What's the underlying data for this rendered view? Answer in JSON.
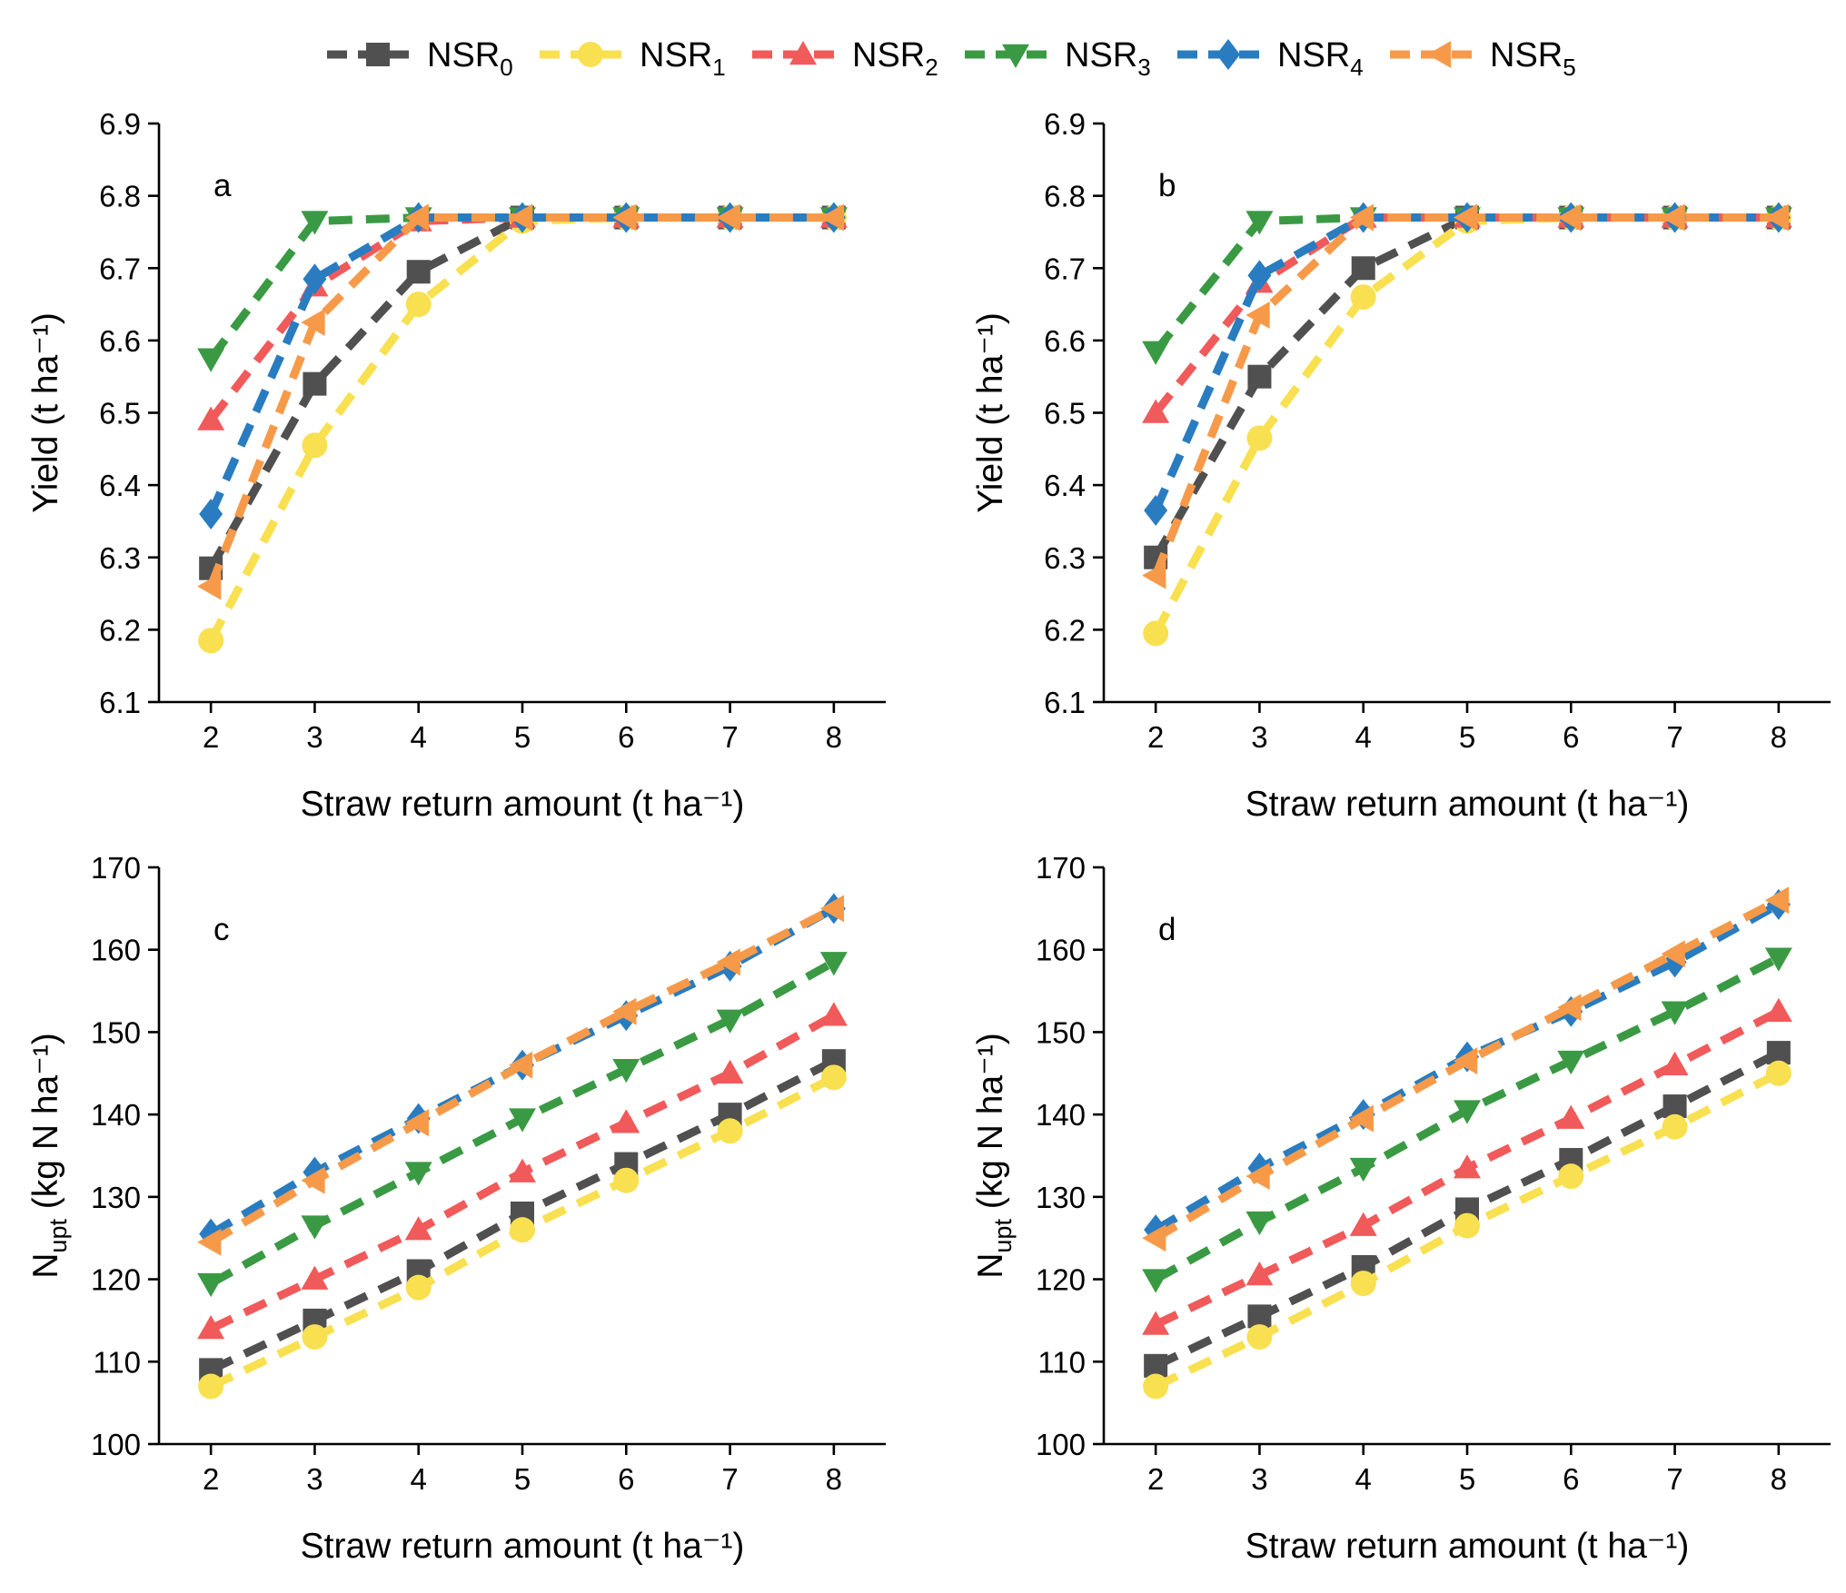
{
  "legend": {
    "entries": [
      {
        "base": "NSR",
        "sub": "0"
      },
      {
        "base": "NSR",
        "sub": "1"
      },
      {
        "base": "NSR",
        "sub": "2"
      },
      {
        "base": "NSR",
        "sub": "3"
      },
      {
        "base": "NSR",
        "sub": "4"
      },
      {
        "base": "NSR",
        "sub": "5"
      }
    ]
  },
  "colors": {
    "NSR0": "#505050",
    "NSR1": "#f8e050",
    "NSR2": "#f05a5a",
    "NSR3": "#3a9a44",
    "NSR4": "#2a7cc0",
    "NSR5": "#f69a4a"
  },
  "markers": {
    "NSR0": "square",
    "NSR1": "circle",
    "NSR2": "triangle-up",
    "NSR3": "triangle-down",
    "NSR4": "diamond",
    "NSR5": "triangle-left"
  },
  "chart_data": [
    {
      "panel": "a",
      "type": "line",
      "xlabel": "Straw return amount (t ha⁻¹)",
      "ylabel": "Yield (t ha⁻¹)",
      "x": [
        2,
        3,
        4,
        5,
        6,
        7,
        8
      ],
      "xlim": [
        1.5,
        8.5
      ],
      "ylim": [
        6.1,
        6.9
      ],
      "yticks": [
        6.1,
        6.2,
        6.3,
        6.4,
        6.5,
        6.6,
        6.7,
        6.8,
        6.9
      ],
      "ytick_labels": [
        "6.1",
        "6.2",
        "6.3",
        "6.4",
        "6.5",
        "6.6",
        "6.7",
        "6.8",
        "6.9"
      ],
      "series": [
        {
          "name": "NSR0",
          "values": [
            6.285,
            6.54,
            6.695,
            6.77,
            6.77,
            6.77,
            6.77
          ]
        },
        {
          "name": "NSR1",
          "values": [
            6.185,
            6.455,
            6.65,
            6.765,
            6.77,
            6.77,
            6.77
          ]
        },
        {
          "name": "NSR2",
          "values": [
            6.49,
            6.675,
            6.765,
            6.77,
            6.77,
            6.77,
            6.77
          ]
        },
        {
          "name": "NSR3",
          "values": [
            6.575,
            6.765,
            6.77,
            6.77,
            6.77,
            6.77,
            6.77
          ]
        },
        {
          "name": "NSR4",
          "values": [
            6.36,
            6.685,
            6.77,
            6.77,
            6.77,
            6.77,
            6.77
          ]
        },
        {
          "name": "NSR5",
          "values": [
            6.26,
            6.625,
            6.77,
            6.77,
            6.77,
            6.77,
            6.77
          ]
        }
      ]
    },
    {
      "panel": "b",
      "type": "line",
      "xlabel": "Straw return amount (t ha⁻¹)",
      "ylabel": "Yield (t ha⁻¹)",
      "x": [
        2,
        3,
        4,
        5,
        6,
        7,
        8
      ],
      "xlim": [
        1.5,
        8.5
      ],
      "ylim": [
        6.1,
        6.9
      ],
      "yticks": [
        6.1,
        6.2,
        6.3,
        6.4,
        6.5,
        6.6,
        6.7,
        6.8,
        6.9
      ],
      "ytick_labels": [
        "6.1",
        "6.2",
        "6.3",
        "6.4",
        "6.5",
        "6.6",
        "6.7",
        "6.8",
        "6.9"
      ],
      "series": [
        {
          "name": "NSR0",
          "values": [
            6.3,
            6.55,
            6.7,
            6.77,
            6.77,
            6.77,
            6.77
          ]
        },
        {
          "name": "NSR1",
          "values": [
            6.195,
            6.465,
            6.66,
            6.765,
            6.77,
            6.77,
            6.77
          ]
        },
        {
          "name": "NSR2",
          "values": [
            6.5,
            6.68,
            6.77,
            6.77,
            6.77,
            6.77,
            6.77
          ]
        },
        {
          "name": "NSR3",
          "values": [
            6.585,
            6.765,
            6.77,
            6.77,
            6.77,
            6.77,
            6.77
          ]
        },
        {
          "name": "NSR4",
          "values": [
            6.365,
            6.69,
            6.77,
            6.77,
            6.77,
            6.77,
            6.77
          ]
        },
        {
          "name": "NSR5",
          "values": [
            6.275,
            6.635,
            6.77,
            6.77,
            6.77,
            6.77,
            6.77
          ]
        }
      ]
    },
    {
      "panel": "c",
      "type": "line",
      "xlabel": "Straw return amount (t ha⁻¹)",
      "ylabel": "N",
      "ylabel_sub": "upt",
      "ylabel_rest": "(kg N ha⁻¹)",
      "x": [
        2,
        3,
        4,
        5,
        6,
        7,
        8
      ],
      "xlim": [
        1.5,
        8.5
      ],
      "ylim": [
        100,
        170
      ],
      "yticks": [
        100,
        110,
        120,
        130,
        140,
        150,
        160,
        170
      ],
      "ytick_labels": [
        "100",
        "110",
        "120",
        "130",
        "140",
        "150",
        "160",
        "170"
      ],
      "series": [
        {
          "name": "NSR0",
          "values": [
            109,
            115,
            121,
            128,
            134,
            140,
            146.5
          ]
        },
        {
          "name": "NSR1",
          "values": [
            107,
            113,
            119,
            126,
            132,
            138,
            144.5
          ]
        },
        {
          "name": "NSR2",
          "values": [
            114,
            120,
            126,
            133,
            139,
            145,
            152
          ]
        },
        {
          "name": "NSR3",
          "values": [
            119.5,
            126.5,
            133,
            139.5,
            145.5,
            151.5,
            158.5
          ]
        },
        {
          "name": "NSR4",
          "values": [
            125.5,
            133,
            139.5,
            146,
            152,
            158,
            165
          ]
        },
        {
          "name": "NSR5",
          "values": [
            124.5,
            132,
            139,
            146,
            152.5,
            158.5,
            165
          ]
        }
      ]
    },
    {
      "panel": "d",
      "type": "line",
      "xlabel": "Straw return amount (t ha⁻¹)",
      "ylabel": "N",
      "ylabel_sub": "upt",
      "ylabel_rest": "(kg N ha⁻¹)",
      "x": [
        2,
        3,
        4,
        5,
        6,
        7,
        8
      ],
      "xlim": [
        1.5,
        8.5
      ],
      "ylim": [
        100,
        170
      ],
      "yticks": [
        100,
        110,
        120,
        130,
        140,
        150,
        160,
        170
      ],
      "ytick_labels": [
        "100",
        "110",
        "120",
        "130",
        "140",
        "150",
        "160",
        "170"
      ],
      "series": [
        {
          "name": "NSR0",
          "values": [
            109.5,
            115.5,
            121.5,
            128.5,
            134.5,
            141,
            147.5
          ]
        },
        {
          "name": "NSR1",
          "values": [
            107,
            113,
            119.5,
            126.5,
            132.5,
            138.5,
            145
          ]
        },
        {
          "name": "NSR2",
          "values": [
            114.5,
            120.5,
            126.5,
            133.5,
            139.5,
            146,
            152.5
          ]
        },
        {
          "name": "NSR3",
          "values": [
            120,
            127,
            133.5,
            140.5,
            146.5,
            152.5,
            159
          ]
        },
        {
          "name": "NSR4",
          "values": [
            126,
            133.5,
            140,
            147,
            152.5,
            158.5,
            165.5
          ]
        },
        {
          "name": "NSR5",
          "values": [
            125,
            132.5,
            139.5,
            146.5,
            153,
            159.5,
            166
          ]
        }
      ]
    }
  ]
}
